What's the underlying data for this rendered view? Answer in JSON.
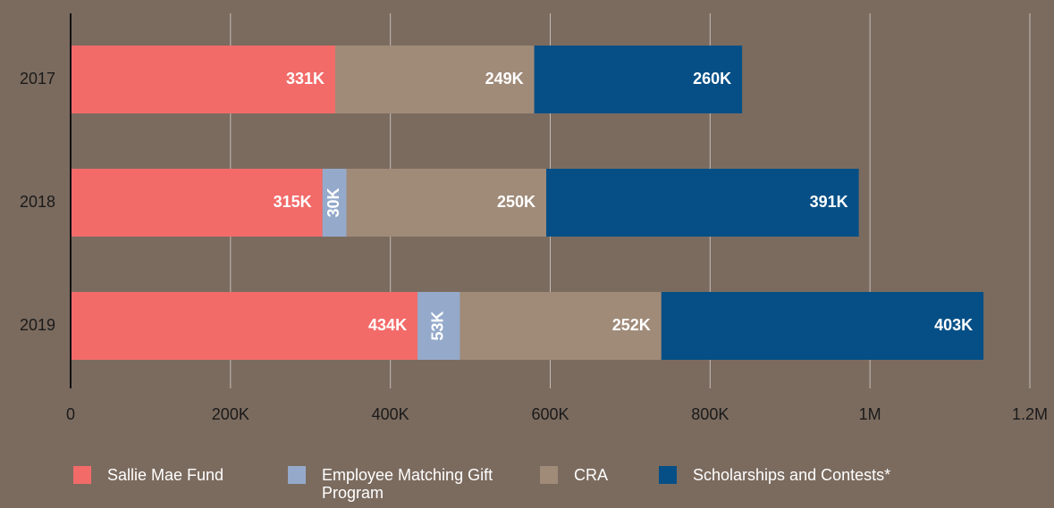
{
  "chart_data": {
    "type": "stacked_barh",
    "categories": [
      "2017",
      "2018",
      "2019"
    ],
    "series": [
      {
        "name": "Sallie Mae Fund",
        "color": "#f26b69",
        "values": [
          331000,
          315000,
          434000
        ],
        "value_labels": [
          "331K",
          "315K",
          "434K"
        ]
      },
      {
        "name": "Employee Matching Gift Program",
        "color": "#95aacb",
        "values": [
          null,
          30000,
          53000
        ],
        "value_labels": [
          null,
          "30K",
          "53K"
        ]
      },
      {
        "name": "CRA",
        "color": "#a08b79",
        "values": [
          249000,
          250000,
          252000
        ],
        "value_labels": [
          "249K",
          "250K",
          "252K"
        ]
      },
      {
        "name": "Scholarships and Contests*",
        "color": "#054f86",
        "values": [
          260000,
          391000,
          403000
        ],
        "value_labels": [
          "260K",
          "391K",
          "403K"
        ]
      }
    ],
    "xlim": [
      0,
      1200000
    ],
    "xticks": [
      0,
      {
        "value": 200000,
        "label": "200K"
      },
      {
        "value": 400000,
        "label": "400K"
      },
      {
        "value": 600000,
        "label": "600K"
      },
      {
        "value": 800000,
        "label": "800K"
      },
      {
        "value": 1000000,
        "label": "1M"
      },
      {
        "value": 1200000,
        "label": "1.2M"
      }
    ],
    "grid": true
  }
}
